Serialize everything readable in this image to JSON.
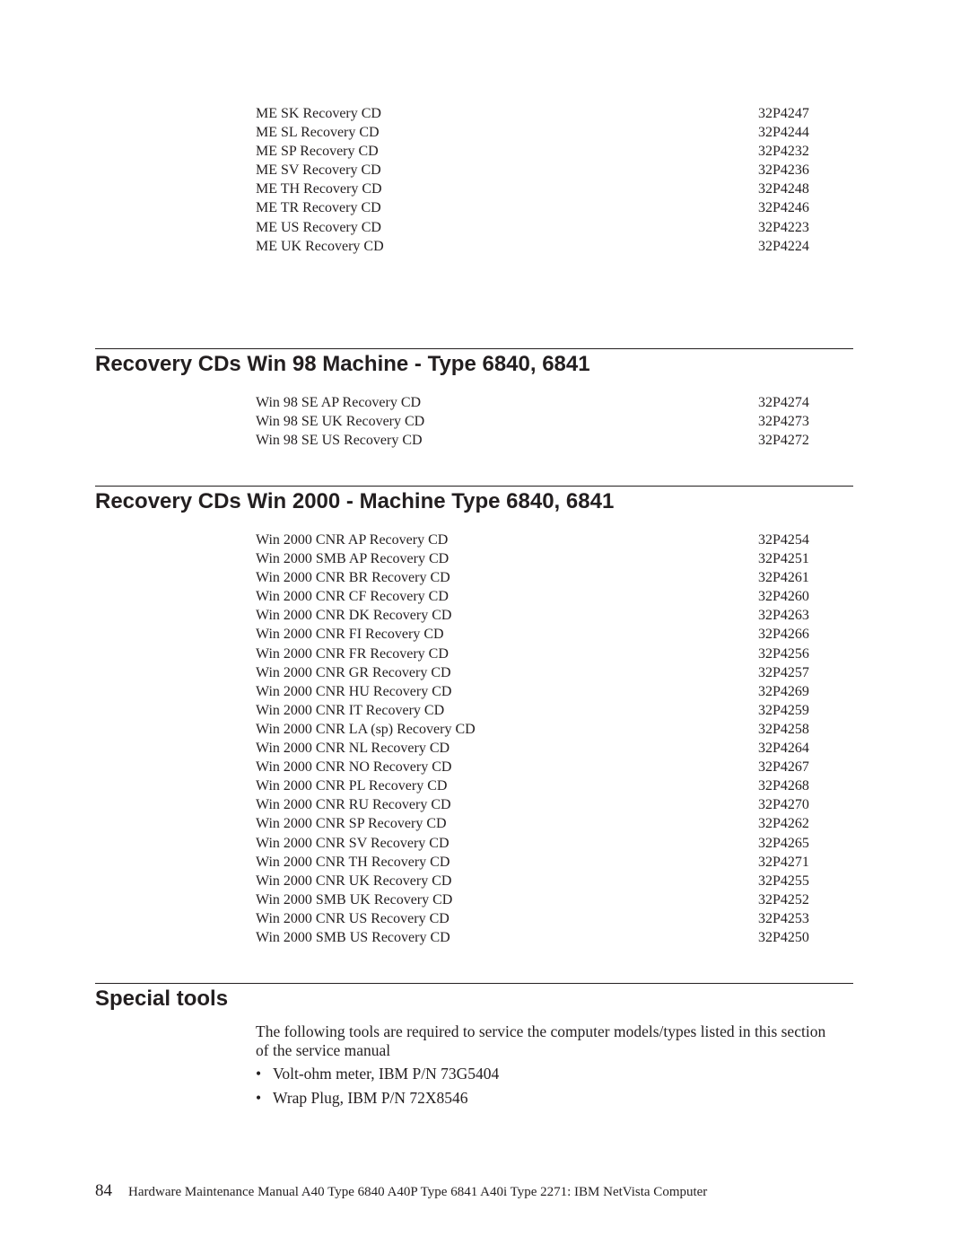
{
  "top_list": [
    {
      "name": "ME SK Recovery CD",
      "pn": "32P4247"
    },
    {
      "name": "ME SL Recovery CD",
      "pn": "32P4244"
    },
    {
      "name": "ME SP Recovery CD",
      "pn": "32P4232"
    },
    {
      "name": "ME SV Recovery CD",
      "pn": "32P4236"
    },
    {
      "name": "ME TH Recovery CD",
      "pn": "32P4248"
    },
    {
      "name": "ME TR Recovery CD",
      "pn": "32P4246"
    },
    {
      "name": "ME US Recovery CD",
      "pn": "32P4223"
    },
    {
      "name": "ME UK Recovery CD",
      "pn": "32P4224"
    }
  ],
  "win98": {
    "heading": "Recovery CDs Win 98 Machine - Type 6840, 6841",
    "items": [
      {
        "name": "Win 98 SE AP Recovery CD",
        "pn": "32P4274"
      },
      {
        "name": "Win 98 SE UK Recovery CD",
        "pn": "32P4273"
      },
      {
        "name": "Win 98 SE US Recovery CD",
        "pn": "32P4272"
      }
    ]
  },
  "win2000": {
    "heading": "Recovery CDs Win 2000 - Machine Type 6840, 6841",
    "items": [
      {
        "name": "Win 2000 CNR AP Recovery CD",
        "pn": "32P4254"
      },
      {
        "name": "Win 2000 SMB AP Recovery CD",
        "pn": "32P4251"
      },
      {
        "name": "Win 2000 CNR BR Recovery CD",
        "pn": "32P4261"
      },
      {
        "name": "Win 2000 CNR CF Recovery CD",
        "pn": "32P4260"
      },
      {
        "name": "Win 2000 CNR DK Recovery CD",
        "pn": "32P4263"
      },
      {
        "name": "Win 2000 CNR FI Recovery CD",
        "pn": "32P4266"
      },
      {
        "name": "Win 2000 CNR FR Recovery CD",
        "pn": "32P4256"
      },
      {
        "name": "Win 2000 CNR GR Recovery CD",
        "pn": "32P4257"
      },
      {
        "name": "Win 2000 CNR HU Recovery CD",
        "pn": "32P4269"
      },
      {
        "name": "Win 2000 CNR IT Recovery CD",
        "pn": "32P4259"
      },
      {
        "name": "Win 2000 CNR LA (sp) Recovery CD",
        "pn": "32P4258"
      },
      {
        "name": "Win 2000 CNR NL Recovery CD",
        "pn": "32P4264"
      },
      {
        "name": "Win 2000 CNR NO Recovery CD",
        "pn": "32P4267"
      },
      {
        "name": "Win 2000 CNR PL Recovery CD",
        "pn": "32P4268"
      },
      {
        "name": "Win 2000 CNR RU Recovery CD",
        "pn": "32P4270"
      },
      {
        "name": "Win 2000 CNR SP Recovery CD",
        "pn": "32P4262"
      },
      {
        "name": "Win 2000 CNR SV Recovery CD",
        "pn": "32P4265"
      },
      {
        "name": "Win 2000 CNR TH Recovery CD",
        "pn": "32P4271"
      },
      {
        "name": "Win 2000 CNR UK Recovery CD",
        "pn": "32P4255"
      },
      {
        "name": "Win 2000 SMB UK Recovery CD",
        "pn": "32P4252"
      },
      {
        "name": "Win 2000 CNR US Recovery CD",
        "pn": "32P4253"
      },
      {
        "name": "Win 2000 SMB US Recovery CD",
        "pn": "32P4250"
      }
    ]
  },
  "special_tools": {
    "heading": "Special tools",
    "intro": "The following tools are required to service the computer models/types listed in this section of the service manual",
    "bullets": [
      "Volt-ohm meter, IBM P/N 73G5404",
      "Wrap Plug, IBM P/N 72X8546"
    ]
  },
  "footer": {
    "page_number": "84",
    "text": "Hardware Maintenance Manual A40 Type 6840 A40P Type 6841 A40i Type 2271: IBM NetVista Computer"
  }
}
